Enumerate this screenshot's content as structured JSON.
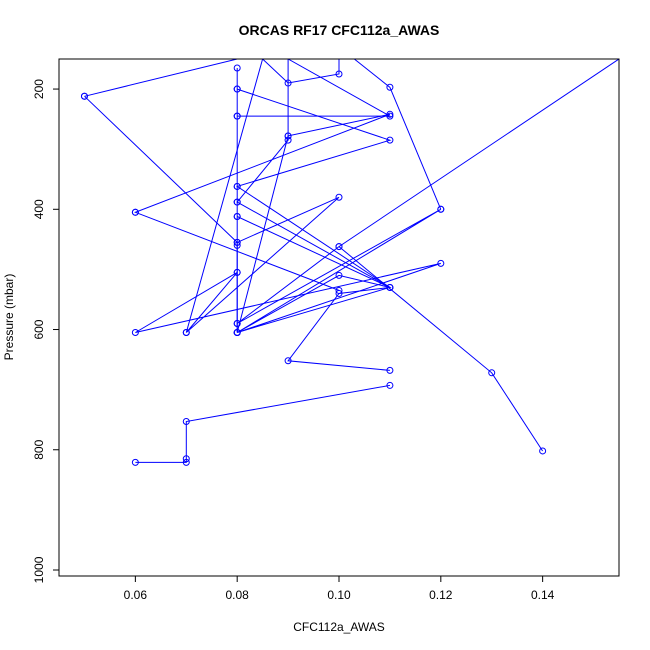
{
  "chart_data": {
    "type": "line",
    "title": "ORCAS RF17 CFC112a_AWAS",
    "xlabel": "CFC112a_AWAS",
    "ylabel": "Pressure (mbar)",
    "xlim": [
      0.045,
      0.155
    ],
    "ylim": [
      1010,
      150
    ],
    "x_ticks": [
      0.06,
      0.08,
      0.1,
      0.12,
      0.14
    ],
    "x_tick_labels": [
      "0.06",
      "0.08",
      "0.10",
      "0.12",
      "0.14"
    ],
    "y_ticks": [
      200,
      400,
      600,
      800,
      1000
    ],
    "y_tick_labels": [
      "200",
      "400",
      "600",
      "800",
      "1000"
    ],
    "series_color": "#0000ff",
    "segments": [
      [
        {
          "x": 0.06,
          "y": 821
        },
        {
          "x": 0.07,
          "y": 821
        },
        {
          "x": 0.07,
          "y": 815
        },
        {
          "x": 0.07,
          "y": 753
        },
        {
          "x": 0.11,
          "y": 693
        }
      ],
      [
        {
          "x": 0.085,
          "y": 150
        },
        {
          "x": 0.09,
          "y": 190
        },
        {
          "x": 0.1,
          "y": 175
        },
        {
          "x": 0.1,
          "y": 150
        }
      ],
      [
        {
          "x": 0.09,
          "y": 150
        },
        {
          "x": 0.09,
          "y": 278
        },
        {
          "x": 0.08,
          "y": 605
        },
        {
          "x": 0.08,
          "y": 590
        },
        {
          "x": 0.08,
          "y": 505
        },
        {
          "x": 0.08,
          "y": 460
        },
        {
          "x": 0.08,
          "y": 412
        },
        {
          "x": 0.08,
          "y": 388
        },
        {
          "x": 0.08,
          "y": 362
        },
        {
          "x": 0.08,
          "y": 245
        },
        {
          "x": 0.08,
          "y": 200
        },
        {
          "x": 0.08,
          "y": 165
        }
      ],
      [
        {
          "x": 0.05,
          "y": 212
        },
        {
          "x": 0.08,
          "y": 455
        },
        {
          "x": 0.1,
          "y": 380
        },
        {
          "x": 0.07,
          "y": 605
        },
        {
          "x": 0.08,
          "y": 505
        },
        {
          "x": 0.06,
          "y": 605
        },
        {
          "x": 0.12,
          "y": 490
        },
        {
          "x": 0.08,
          "y": 605
        },
        {
          "x": 0.11,
          "y": 530
        },
        {
          "x": 0.08,
          "y": 388
        },
        {
          "x": 0.09,
          "y": 285
        },
        {
          "x": 0.09,
          "y": 278
        },
        {
          "x": 0.11,
          "y": 242
        },
        {
          "x": 0.06,
          "y": 405
        },
        {
          "x": 0.1,
          "y": 535
        },
        {
          "x": 0.06,
          "y": 405
        }
      ],
      [
        {
          "x": 0.08,
          "y": 200
        },
        {
          "x": 0.11,
          "y": 285
        },
        {
          "x": 0.08,
          "y": 362
        },
        {
          "x": 0.11,
          "y": 530
        },
        {
          "x": 0.1,
          "y": 510
        },
        {
          "x": 0.08,
          "y": 605
        },
        {
          "x": 0.12,
          "y": 400
        },
        {
          "x": 0.08,
          "y": 590
        },
        {
          "x": 0.1,
          "y": 462
        },
        {
          "x": 0.155,
          "y": 150
        }
      ],
      [
        {
          "x": 0.08,
          "y": 412
        },
        {
          "x": 0.11,
          "y": 530
        },
        {
          "x": 0.1,
          "y": 540
        },
        {
          "x": 0.09,
          "y": 652
        },
        {
          "x": 0.11,
          "y": 668
        }
      ],
      [
        {
          "x": 0.09,
          "y": 150
        },
        {
          "x": 0.11,
          "y": 245
        },
        {
          "x": 0.08,
          "y": 245
        }
      ],
      [
        {
          "x": 0.103,
          "y": 150
        },
        {
          "x": 0.11,
          "y": 197
        },
        {
          "x": 0.12,
          "y": 400
        }
      ],
      [
        {
          "x": 0.1,
          "y": 462
        },
        {
          "x": 0.13,
          "y": 672
        },
        {
          "x": 0.14,
          "y": 802
        }
      ],
      [
        {
          "x": 0.06,
          "y": 150
        },
        {
          "x": 0.08,
          "y": 150
        },
        {
          "x": 0.05,
          "y": 212
        }
      ],
      [
        {
          "x": 0.085,
          "y": 150
        },
        {
          "x": 0.07,
          "y": 605
        }
      ],
      [
        {
          "x": 0.08,
          "y": 455
        },
        {
          "x": 0.08,
          "y": 605
        }
      ]
    ]
  }
}
